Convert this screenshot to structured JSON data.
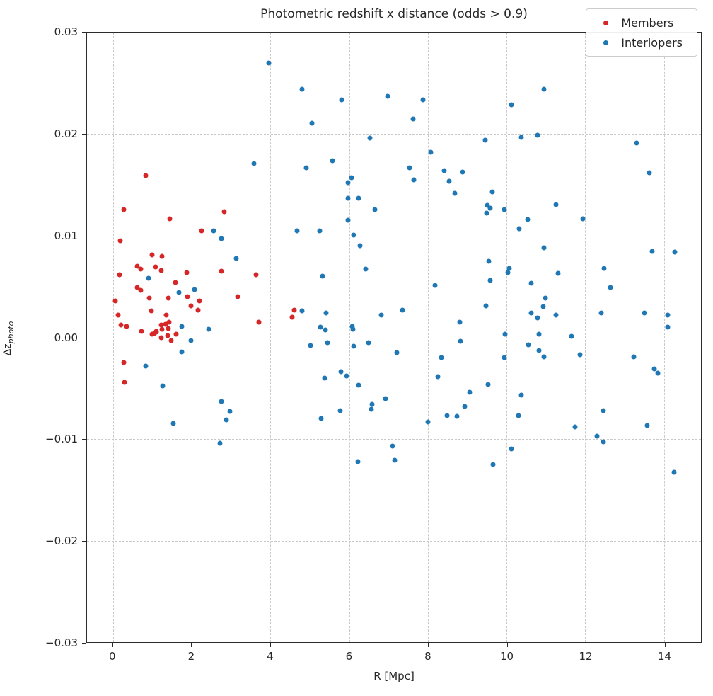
{
  "chart_data": {
    "type": "scatter",
    "title": "Photometric redshift x distance (odds > 0.9)",
    "xlabel": "R [Mpc]",
    "ylabel": "Δz_photo",
    "ylabel_base": "Δz",
    "ylabel_sub": "photo",
    "xlim": [
      -0.66,
      14.94
    ],
    "ylim": [
      -0.03,
      0.03
    ],
    "xticks": [
      0,
      2,
      4,
      6,
      8,
      10,
      12,
      14
    ],
    "xtick_labels": [
      "0",
      "2",
      "4",
      "6",
      "8",
      "10",
      "12",
      "14"
    ],
    "yticks": [
      0.03,
      0.02,
      0.01,
      0.0,
      -0.01,
      -0.02,
      -0.03
    ],
    "ytick_labels": [
      "0.03",
      "0.02",
      "0.01",
      "0.00",
      "−0.01",
      "−0.02",
      "−0.03"
    ],
    "grid": true,
    "grid_style": "dashed",
    "legend_position": "upper right",
    "series": [
      {
        "name": "Members",
        "color": "#d62728",
        "points": [
          [
            0.83,
            0.0159
          ],
          [
            0.27,
            0.0126
          ],
          [
            1.44,
            0.0117
          ],
          [
            2.26,
            0.0105
          ],
          [
            2.82,
            0.0124
          ],
          [
            0.18,
            0.0095
          ],
          [
            0.99,
            0.0081
          ],
          [
            1.24,
            0.008
          ],
          [
            0.61,
            0.007
          ],
          [
            0.7,
            0.0067
          ],
          [
            1.08,
            0.0069
          ],
          [
            1.22,
            0.0066
          ],
          [
            0.16,
            0.0062
          ],
          [
            1.88,
            0.0064
          ],
          [
            2.75,
            0.0065
          ],
          [
            3.63,
            0.0062
          ],
          [
            1.58,
            0.0054
          ],
          [
            0.61,
            0.0049
          ],
          [
            0.7,
            0.0046
          ],
          [
            0.93,
            0.0039
          ],
          [
            1.4,
            0.0039
          ],
          [
            1.9,
            0.004
          ],
          [
            3.16,
            0.004
          ],
          [
            0.05,
            0.0036
          ],
          [
            2.2,
            0.0036
          ],
          [
            1.99,
            0.0031
          ],
          [
            2.17,
            0.0027
          ],
          [
            0.97,
            0.0026
          ],
          [
            0.13,
            0.0022
          ],
          [
            1.35,
            0.0022
          ],
          [
            4.6,
            0.0027
          ],
          [
            4.55,
            0.002
          ],
          [
            3.7,
            0.0015
          ],
          [
            0.21,
            0.0012
          ],
          [
            0.34,
            0.0011
          ],
          [
            1.22,
            0.0012
          ],
          [
            1.33,
            0.0013
          ],
          [
            1.42,
            0.0015
          ],
          [
            1.4,
            0.0009
          ],
          [
            1.24,
            0.0008
          ],
          [
            1.1,
            0.0006
          ],
          [
            0.72,
            0.0006
          ],
          [
            0.99,
            0.0003
          ],
          [
            1.04,
            0.0004
          ],
          [
            1.11,
            0.0005
          ],
          [
            1.22,
            0.0
          ],
          [
            1.38,
            0.0002
          ],
          [
            1.6,
            0.0003
          ],
          [
            1.47,
            -0.0003
          ],
          [
            0.27,
            -0.0025
          ],
          [
            0.29,
            -0.0044
          ]
        ]
      },
      {
        "name": "Interlopers",
        "color": "#1f77b4",
        "points": [
          [
            3.95,
            0.027
          ],
          [
            3.59,
            0.0171
          ],
          [
            2.55,
            0.0105
          ],
          [
            2.75,
            0.0097
          ],
          [
            3.14,
            0.0078
          ],
          [
            4.81,
            0.0244
          ],
          [
            5.81,
            0.0234
          ],
          [
            6.97,
            0.0237
          ],
          [
            7.88,
            0.0234
          ],
          [
            7.63,
            0.0215
          ],
          [
            5.05,
            0.0211
          ],
          [
            6.53,
            0.0196
          ],
          [
            9.46,
            0.0194
          ],
          [
            8.07,
            0.0182
          ],
          [
            5.57,
            0.0174
          ],
          [
            4.91,
            0.0167
          ],
          [
            7.54,
            0.0167
          ],
          [
            8.42,
            0.0164
          ],
          [
            8.89,
            0.0163
          ],
          [
            6.06,
            0.0157
          ],
          [
            5.97,
            0.0152
          ],
          [
            7.64,
            0.0155
          ],
          [
            8.54,
            0.0154
          ],
          [
            8.69,
            0.0142
          ],
          [
            9.63,
            0.0143
          ],
          [
            5.97,
            0.0137
          ],
          [
            6.25,
            0.0137
          ],
          [
            9.52,
            0.013
          ],
          [
            9.59,
            0.0127
          ],
          [
            9.5,
            0.0122
          ],
          [
            6.65,
            0.0126
          ],
          [
            5.97,
            0.0115
          ],
          [
            4.67,
            0.0105
          ],
          [
            5.26,
            0.0105
          ],
          [
            6.12,
            0.0101
          ],
          [
            10.95,
            0.0244
          ],
          [
            10.13,
            0.0229
          ],
          [
            10.38,
            0.0197
          ],
          [
            10.78,
            0.0199
          ],
          [
            13.3,
            0.0191
          ],
          [
            13.63,
            0.0162
          ],
          [
            9.94,
            0.0126
          ],
          [
            11.25,
            0.0131
          ],
          [
            10.53,
            0.0116
          ],
          [
            11.94,
            0.0117
          ],
          [
            10.32,
            0.0107
          ],
          [
            0.9,
            0.0058
          ],
          [
            1.67,
            0.0044
          ],
          [
            2.08,
            0.0047
          ],
          [
            1.75,
            0.0011
          ],
          [
            2.43,
            0.0008
          ],
          [
            1.99,
            -0.0003
          ],
          [
            1.75,
            -0.0014
          ],
          [
            0.84,
            -0.0028
          ],
          [
            1.26,
            -0.0048
          ],
          [
            2.76,
            -0.0063
          ],
          [
            2.97,
            -0.0073
          ],
          [
            2.88,
            -0.0081
          ],
          [
            1.54,
            -0.0085
          ],
          [
            6.28,
            0.009
          ],
          [
            6.43,
            0.0067
          ],
          [
            5.33,
            0.006
          ],
          [
            8.19,
            0.0051
          ],
          [
            9.55,
            0.0075
          ],
          [
            9.59,
            0.0056
          ],
          [
            9.48,
            0.0031
          ],
          [
            4.8,
            0.0026
          ],
          [
            5.41,
            0.0024
          ],
          [
            5.27,
            0.001
          ],
          [
            5.4,
            0.0007
          ],
          [
            6.08,
            0.0011
          ],
          [
            6.1,
            0.0008
          ],
          [
            6.82,
            0.0022
          ],
          [
            7.36,
            0.0027
          ],
          [
            8.81,
            0.0015
          ],
          [
            5.02,
            -0.0008
          ],
          [
            5.45,
            -0.0005
          ],
          [
            6.11,
            -0.0009
          ],
          [
            6.49,
            -0.0005
          ],
          [
            7.21,
            -0.0015
          ],
          [
            8.83,
            -0.0004
          ],
          [
            8.35,
            -0.002
          ],
          [
            5.8,
            -0.0034
          ],
          [
            5.94,
            -0.0038
          ],
          [
            5.38,
            -0.004
          ],
          [
            6.25,
            -0.0047
          ],
          [
            8.25,
            -0.0039
          ],
          [
            9.06,
            -0.0054
          ],
          [
            9.53,
            -0.0046
          ],
          [
            6.92,
            -0.006
          ],
          [
            6.58,
            -0.0066
          ],
          [
            6.57,
            -0.0071
          ],
          [
            8.94,
            -0.0068
          ],
          [
            5.78,
            -0.0072
          ],
          [
            5.29,
            -0.008
          ],
          [
            8.49,
            -0.0077
          ],
          [
            8.74,
            -0.0078
          ],
          [
            8.01,
            -0.0083
          ],
          [
            10.95,
            0.0088
          ],
          [
            13.7,
            0.0085
          ],
          [
            14.27,
            0.0084
          ],
          [
            10.07,
            0.0068
          ],
          [
            10.04,
            0.0064
          ],
          [
            12.48,
            0.0068
          ],
          [
            11.31,
            0.0063
          ],
          [
            10.63,
            0.0053
          ],
          [
            12.64,
            0.0049
          ],
          [
            10.99,
            0.0039
          ],
          [
            10.93,
            0.003
          ],
          [
            10.63,
            0.0024
          ],
          [
            10.78,
            0.0019
          ],
          [
            11.25,
            0.0022
          ],
          [
            12.41,
            0.0024
          ],
          [
            13.5,
            0.0024
          ],
          [
            14.1,
            0.0022
          ],
          [
            14.1,
            0.001
          ],
          [
            9.96,
            0.0003
          ],
          [
            10.82,
            0.0003
          ],
          [
            11.65,
            0.0001
          ],
          [
            10.55,
            -0.0007
          ],
          [
            10.82,
            -0.0013
          ],
          [
            10.95,
            -0.0019
          ],
          [
            9.94,
            -0.002
          ],
          [
            11.86,
            -0.0017
          ],
          [
            13.23,
            -0.0019
          ],
          [
            13.75,
            -0.0031
          ],
          [
            13.85,
            -0.0035
          ],
          [
            10.38,
            -0.0057
          ],
          [
            10.3,
            -0.0077
          ],
          [
            12.46,
            -0.0072
          ],
          [
            11.74,
            -0.0088
          ],
          [
            13.57,
            -0.0087
          ],
          [
            12.3,
            -0.0097
          ],
          [
            2.72,
            -0.0104
          ],
          [
            7.11,
            -0.0107
          ],
          [
            6.22,
            -0.0122
          ],
          [
            7.15,
            -0.0121
          ],
          [
            9.66,
            -0.0125
          ],
          [
            10.13,
            -0.011
          ],
          [
            12.46,
            -0.0103
          ],
          [
            14.25,
            -0.0133
          ]
        ]
      }
    ]
  }
}
